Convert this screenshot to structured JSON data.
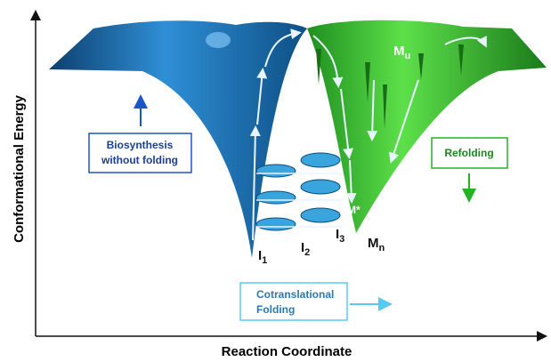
{
  "axes": {
    "y_label": "Conformational Energy",
    "x_label": "Reaction Coordinate"
  },
  "boxes": {
    "biosynthesis": {
      "lines": [
        "Biosynthesis",
        "without folding"
      ]
    },
    "refolding": {
      "lines": [
        "Refolding"
      ]
    },
    "cotranslational": {
      "lines": [
        "Cotranslational",
        "Folding"
      ]
    }
  },
  "states": {
    "i1": {
      "base": "I",
      "sub": "1"
    },
    "i2": {
      "base": "I",
      "sub": "2"
    },
    "i3": {
      "base": "I",
      "sub": "3"
    },
    "mu": {
      "base": "M",
      "sub": "u"
    },
    "mn": {
      "base": "M",
      "sub": "n"
    },
    "mstar": {
      "base": "M*"
    }
  }
}
